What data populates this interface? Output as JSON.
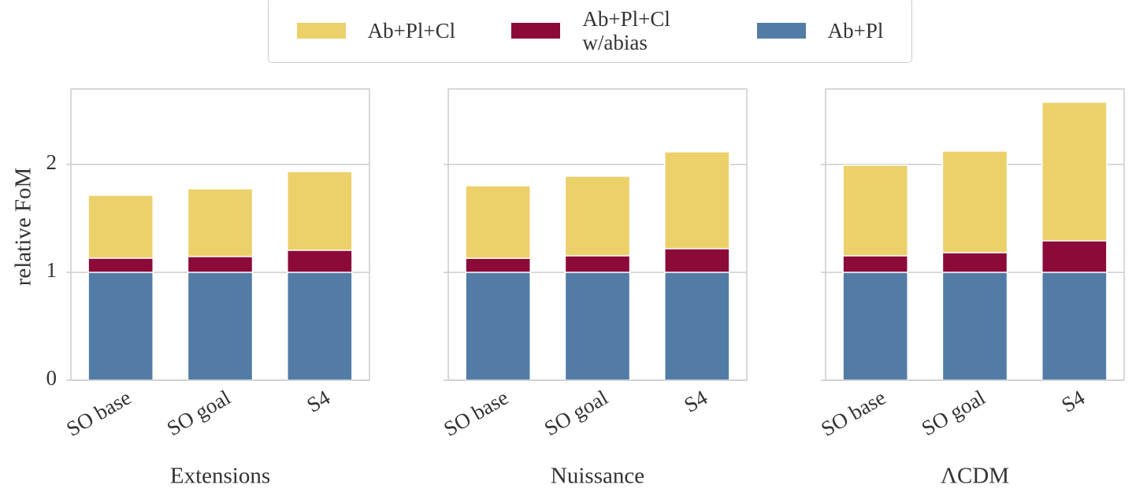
{
  "chart_data": [
    {
      "type": "bar",
      "xlabel": "Extensions",
      "ylabel": "relative FoM",
      "categories": [
        "SO base",
        "SO goal",
        "S4"
      ],
      "series": [
        {
          "name": "Ab+Pl+Cl",
          "color": "#ecd06a",
          "values": [
            1.715,
            1.774,
            1.934
          ]
        },
        {
          "name": "Ab+Pl+Cl w/abias",
          "color": "#8c0a3a",
          "values": [
            1.131,
            1.146,
            1.204
          ]
        },
        {
          "name": "Ab+Pl",
          "color": "#527ca6",
          "values": [
            1,
            1,
            1
          ]
        }
      ],
      "ylim": [
        0,
        2.7
      ],
      "yticks": [
        0,
        1,
        2
      ],
      "grid": true
    },
    {
      "type": "bar",
      "xlabel": "Nuissance",
      "categories": [
        "SO base",
        "SO goal",
        "S4"
      ],
      "series": [
        {
          "name": "Ab+Pl+Cl",
          "color": "#ecd06a",
          "values": [
            1.803,
            1.891,
            2.117
          ]
        },
        {
          "name": "Ab+Pl+Cl w/abias",
          "color": "#8c0a3a",
          "values": [
            1.13,
            1.153,
            1.219
          ]
        },
        {
          "name": "Ab+Pl",
          "color": "#527ca6",
          "values": [
            1,
            1,
            1
          ]
        }
      ],
      "ylim": [
        0,
        2.7
      ],
      "yticks": [
        0,
        1,
        2
      ],
      "grid": true
    },
    {
      "type": "bar",
      "xlabel": "ΛCDM",
      "categories": [
        "SO base",
        "SO goal",
        "S4"
      ],
      "series": [
        {
          "name": "Ab+Pl+Cl",
          "color": "#ecd06a",
          "values": [
            1.993,
            2.124,
            2.577
          ]
        },
        {
          "name": "Ab+Pl+Cl w/abias",
          "color": "#8c0a3a",
          "values": [
            1.153,
            1.182,
            1.292
          ]
        },
        {
          "name": "Ab+Pl",
          "color": "#527ca6",
          "values": [
            1,
            1,
            1
          ]
        }
      ],
      "ylim": [
        0,
        2.7
      ],
      "yticks": [
        0,
        1,
        2
      ],
      "grid": true
    }
  ]
}
